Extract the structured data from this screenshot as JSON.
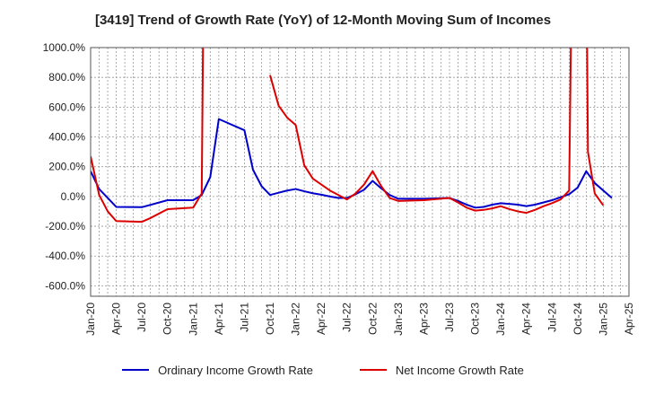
{
  "chart_data": {
    "type": "line",
    "title": "[3419]  Trend of Growth Rate (YoY) of 12-Month Moving Sum of Incomes",
    "xlabel": "",
    "ylabel": "",
    "ylim": [
      -670,
      1000
    ],
    "y_ticks": [
      1000,
      800,
      600,
      400,
      200,
      0,
      -200,
      -400,
      -600
    ],
    "y_tick_labels": [
      "1000.0%",
      "800.0%",
      "600.0%",
      "400.0%",
      "200.0%",
      "0.0%",
      "-200.0%",
      "-400.0%",
      "-600.0%"
    ],
    "x_tick_labels": [
      "Jan-20",
      "Apr-20",
      "Jul-20",
      "Oct-20",
      "Jan-21",
      "Apr-21",
      "Jul-21",
      "Oct-21",
      "Jan-22",
      "Apr-22",
      "Jul-22",
      "Oct-22",
      "Jan-23",
      "Apr-23",
      "Jul-23",
      "Oct-23",
      "Jan-24",
      "Apr-24",
      "Jul-24",
      "Oct-24",
      "Jan-25",
      "Apr-25"
    ],
    "x_start": "2020-01",
    "grid": true,
    "legend_position": "bottom",
    "series": [
      {
        "name": "Ordinary Income Growth Rate",
        "color": "#0000cc",
        "segments": [
          [
            [
              0,
              170
            ],
            [
              1,
              50
            ],
            [
              3,
              -70
            ],
            [
              6,
              -72
            ],
            [
              9,
              -25
            ],
            [
              12,
              -25
            ],
            [
              13,
              10
            ],
            [
              14,
              130
            ],
            [
              15,
              520
            ],
            [
              16,
              495
            ],
            [
              17,
              470
            ],
            [
              18,
              445
            ],
            [
              19,
              180
            ],
            [
              20,
              70
            ],
            [
              21,
              10
            ],
            [
              22,
              25
            ],
            [
              23,
              40
            ],
            [
              24,
              50
            ],
            [
              25,
              35
            ],
            [
              26,
              22
            ],
            [
              27,
              12
            ],
            [
              28,
              0
            ],
            [
              29,
              -10
            ],
            [
              30,
              -10
            ],
            [
              31,
              15
            ],
            [
              32,
              45
            ],
            [
              33,
              105
            ],
            [
              34,
              55
            ],
            [
              35,
              10
            ],
            [
              36,
              -15
            ],
            [
              38,
              -15
            ],
            [
              39,
              -15
            ],
            [
              42,
              -10
            ],
            [
              43,
              -30
            ],
            [
              44,
              -55
            ],
            [
              45,
              -75
            ],
            [
              46,
              -70
            ],
            [
              47,
              -55
            ],
            [
              48,
              -45
            ],
            [
              49,
              -50
            ],
            [
              50,
              -55
            ],
            [
              51,
              -65
            ],
            [
              52,
              -55
            ],
            [
              53,
              -40
            ],
            [
              54,
              -25
            ],
            [
              55,
              -5
            ],
            [
              56,
              15
            ],
            [
              57,
              60
            ],
            [
              58,
              170
            ],
            [
              59,
              90
            ],
            [
              60,
              40
            ],
            [
              61,
              -10
            ]
          ]
        ]
      },
      {
        "name": "Net Income Growth Rate",
        "color": "#dd0000",
        "segments": [
          [
            [
              0,
              270
            ],
            [
              1,
              10
            ],
            [
              2,
              -100
            ],
            [
              3,
              -165
            ],
            [
              6,
              -170
            ],
            [
              7,
              -145
            ],
            [
              8,
              -115
            ],
            [
              9,
              -85
            ],
            [
              12,
              -75
            ],
            [
              13,
              20
            ],
            [
              13.15,
              1000
            ]
          ],
          [
            [
              21,
              815
            ],
            [
              22,
              610
            ],
            [
              23,
              530
            ],
            [
              24,
              480
            ],
            [
              25,
              210
            ],
            [
              26,
              120
            ],
            [
              27,
              80
            ],
            [
              28,
              40
            ],
            [
              29,
              10
            ],
            [
              30,
              -20
            ],
            [
              31,
              20
            ],
            [
              32,
              80
            ],
            [
              33,
              170
            ],
            [
              34,
              70
            ],
            [
              35,
              -10
            ],
            [
              36,
              -30
            ],
            [
              39,
              -25
            ],
            [
              42,
              -10
            ],
            [
              43,
              -40
            ],
            [
              44,
              -75
            ],
            [
              45,
              -95
            ],
            [
              46,
              -90
            ],
            [
              47,
              -80
            ],
            [
              48,
              -65
            ],
            [
              49,
              -85
            ],
            [
              50,
              -100
            ],
            [
              51,
              -110
            ],
            [
              52,
              -90
            ],
            [
              53,
              -65
            ],
            [
              54,
              -45
            ],
            [
              55,
              -20
            ],
            [
              56,
              40
            ],
            [
              56.2,
              1000
            ]
          ],
          [
            [
              58.1,
              1000
            ],
            [
              58.2,
              300
            ],
            [
              59,
              20
            ],
            [
              60,
              -60
            ]
          ]
        ]
      }
    ]
  }
}
